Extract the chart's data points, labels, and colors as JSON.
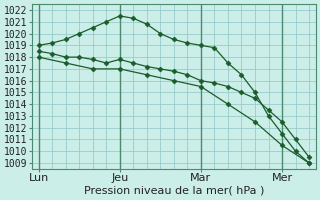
{
  "title": "Pression niveau de la mer( hPa )",
  "bg_color": "#cceee8",
  "grid_color": "#99cccc",
  "line_color": "#1a5c2a",
  "day_line_color": "#4a8a70",
  "ylim": [
    1008.5,
    1022.5
  ],
  "yticks": [
    1009,
    1010,
    1011,
    1012,
    1013,
    1014,
    1015,
    1016,
    1017,
    1018,
    1019,
    1020,
    1021,
    1022
  ],
  "xtick_labels": [
    "Lun",
    "Jeu",
    "Mar",
    "Mer"
  ],
  "xtick_positions": [
    0,
    12,
    24,
    36
  ],
  "xlim": [
    -1,
    41
  ],
  "vlines": [
    0,
    12,
    24,
    36
  ],
  "series": [
    {
      "x": [
        0,
        2,
        4,
        6,
        8,
        10,
        12,
        14,
        16,
        18,
        20,
        22,
        24,
        26,
        28,
        30,
        32,
        34,
        36,
        38,
        40
      ],
      "y": [
        1019.0,
        1019.2,
        1019.5,
        1020.0,
        1020.5,
        1021.0,
        1021.5,
        1021.3,
        1020.8,
        1020.0,
        1019.5,
        1019.2,
        1019.0,
        1018.8,
        1017.5,
        1016.5,
        1015.0,
        1013.0,
        1011.5,
        1010.0,
        1009.0
      ]
    },
    {
      "x": [
        0,
        2,
        4,
        6,
        8,
        10,
        12,
        14,
        16,
        18,
        20,
        22,
        24,
        26,
        28,
        30,
        32,
        34,
        36,
        38,
        40
      ],
      "y": [
        1018.5,
        1018.3,
        1018.0,
        1018.0,
        1017.8,
        1017.5,
        1017.8,
        1017.5,
        1017.2,
        1017.0,
        1016.8,
        1016.5,
        1016.0,
        1015.8,
        1015.5,
        1015.0,
        1014.5,
        1013.5,
        1012.5,
        1011.0,
        1009.5
      ]
    },
    {
      "x": [
        0,
        4,
        8,
        12,
        16,
        20,
        24,
        28,
        32,
        36,
        40
      ],
      "y": [
        1018.0,
        1017.5,
        1017.0,
        1017.0,
        1016.5,
        1016.0,
        1015.5,
        1014.0,
        1012.5,
        1010.5,
        1009.0
      ]
    }
  ],
  "xlabel_fontsize": 8,
  "ylabel_fontsize": 7,
  "grid_minor_x_step": 2,
  "grid_major_x_step": 12
}
